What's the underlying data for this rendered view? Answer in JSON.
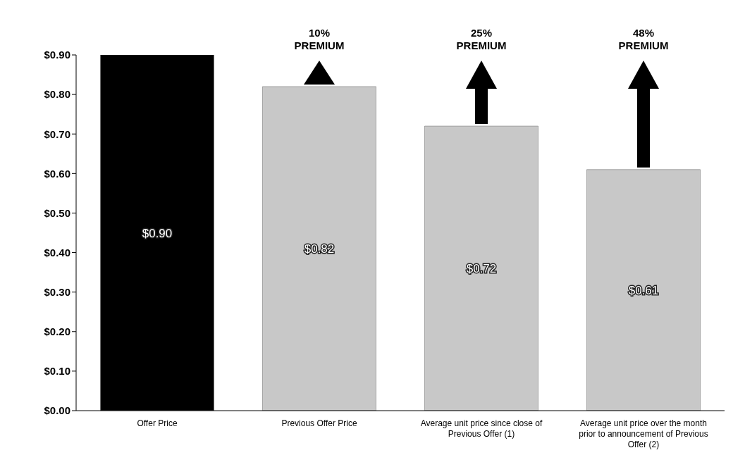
{
  "chart_data": {
    "type": "bar",
    "categories": [
      "Offer Price",
      "Previous Offer Price",
      "Average unit price since close of Previous Offer (1)",
      "Average unit price over the month prior to announcement of Previous Offer (2)"
    ],
    "values": [
      0.9,
      0.82,
      0.72,
      0.61
    ],
    "colors": [
      "#000000",
      "#c8c8c8",
      "#c8c8c8",
      "#c8c8c8"
    ],
    "value_labels": [
      "$0.90",
      "$0.82",
      "$0.72",
      "$0.61"
    ],
    "ylim": [
      0,
      0.9
    ],
    "yticks": [
      {
        "value": 0,
        "label": "$0.00"
      },
      {
        "value": 0.1,
        "label": "$0.10"
      },
      {
        "value": 0.2,
        "label": "$0.20"
      },
      {
        "value": 0.3,
        "label": "$0.30"
      },
      {
        "value": 0.4,
        "label": "$0.40"
      },
      {
        "value": 0.5,
        "label": "$0.50"
      },
      {
        "value": 0.6,
        "label": "$0.60"
      },
      {
        "value": 0.7,
        "label": "$0.70"
      },
      {
        "value": 0.8,
        "label": "$0.80"
      },
      {
        "value": 0.9,
        "label": "$0.90"
      }
    ],
    "annotations": [
      "10% PREMIUM",
      "25% PREMIUM",
      "48% PREMIUM"
    ],
    "grid": false,
    "legend": false
  }
}
